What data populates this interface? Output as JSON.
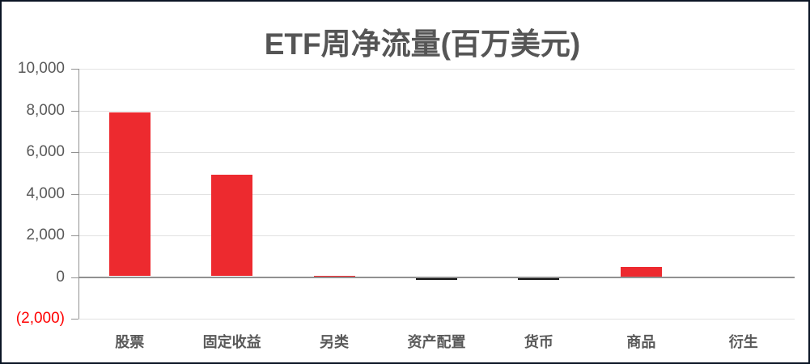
{
  "window": {
    "background": "#ffffff",
    "border_color": "#0a1424"
  },
  "colors": {
    "bar_positive": "#ed2a2f",
    "bar_negative": "#141414",
    "axis": "#919191",
    "gridline": "#e2e2e2",
    "title_text": "#555555",
    "axis_label_text": "#595959",
    "negative_tick_text": "#ff0000"
  },
  "chart_data": {
    "type": "bar",
    "title": "ETF周净流量(百万美元)",
    "xlabel": "",
    "ylabel": "",
    "categories": [
      "股票",
      "固定收益",
      "另类",
      "资产配置",
      "货币",
      "商品",
      "衍生"
    ],
    "values": [
      7900,
      4900,
      60,
      -100,
      -80,
      500,
      0
    ],
    "ylim": [
      -2000,
      10000
    ],
    "ytick_step": 2000,
    "grid": true,
    "legend": false,
    "yticks": [
      {
        "value": 10000,
        "label": "10,000",
        "negative": false
      },
      {
        "value": 8000,
        "label": "8,000",
        "negative": false
      },
      {
        "value": 6000,
        "label": "6,000",
        "negative": false
      },
      {
        "value": 4000,
        "label": "4,000",
        "negative": false
      },
      {
        "value": 2000,
        "label": "2,000",
        "negative": false
      },
      {
        "value": 0,
        "label": "0",
        "negative": false
      },
      {
        "value": -2000,
        "label": "(2,000)",
        "negative": true
      }
    ]
  }
}
